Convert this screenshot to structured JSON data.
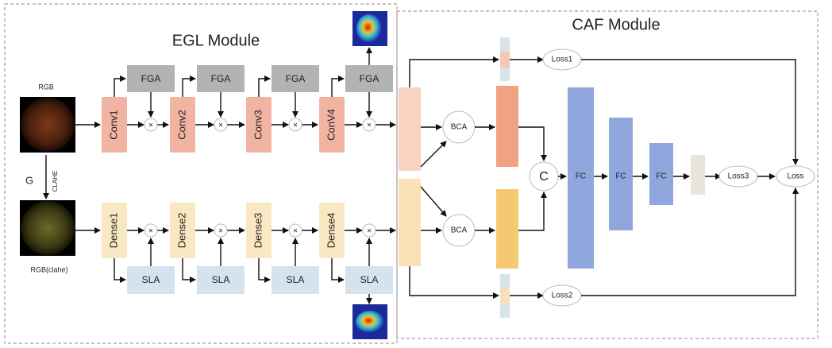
{
  "modules": {
    "egl": "EGL Module",
    "caf": "CAF Module"
  },
  "inputs": {
    "rgb": "RGB",
    "rgb_clahe": "RGB(clahe)",
    "g": "G",
    "clahe": "CLAHE"
  },
  "conv": [
    "Conv1",
    "Conv2",
    "Conv3",
    "ConV4"
  ],
  "fga": [
    "FGA",
    "FGA",
    "FGA",
    "FGA"
  ],
  "dense": [
    "Dense1",
    "Dense2",
    "Dense3",
    "Dense4"
  ],
  "sla": [
    "SLA",
    "SLA",
    "SLA",
    "SLA"
  ],
  "multiply": "×",
  "bca": [
    "BCA",
    "BCA"
  ],
  "concat": "C",
  "fc": [
    "FC",
    "FC",
    "FC"
  ],
  "losses": {
    "loss1": "Loss1",
    "loss2": "Loss2",
    "loss3": "Loss3",
    "loss": "Loss"
  }
}
